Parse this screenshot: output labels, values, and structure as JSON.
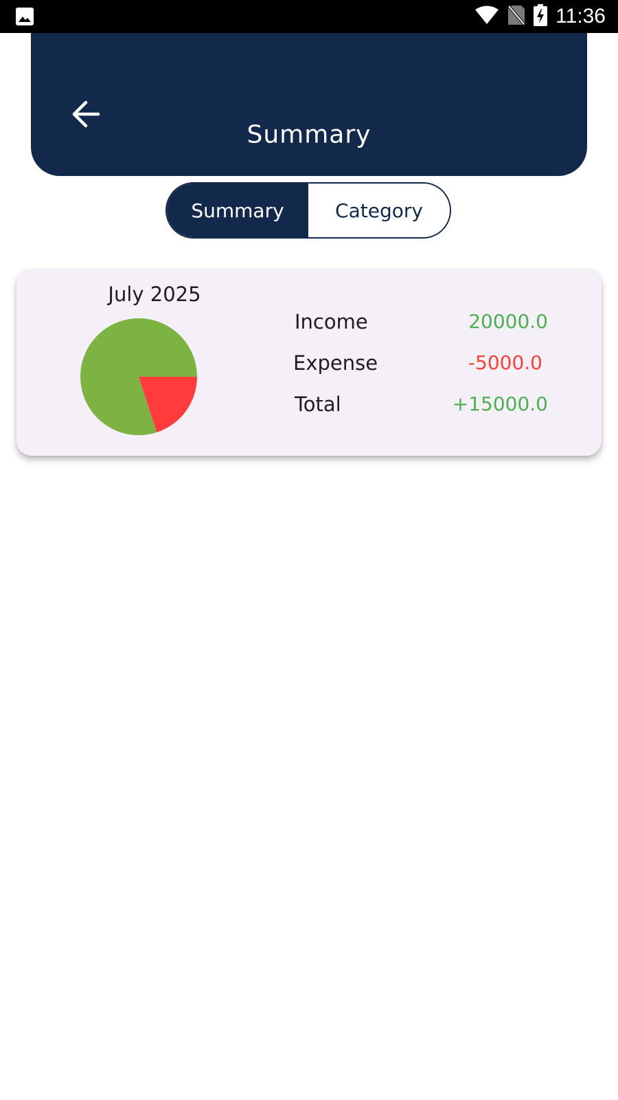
{
  "status_bar": {
    "time": "11:36",
    "icons": [
      "image-icon",
      "wifi-icon",
      "no-sim-icon",
      "battery-charging-icon"
    ]
  },
  "header": {
    "title": "Summary",
    "back_icon": "arrow-left-icon",
    "background_color": "#13294b"
  },
  "tabs": [
    {
      "label": "Summary",
      "active": true
    },
    {
      "label": "Category",
      "active": false
    }
  ],
  "summary_card": {
    "month": "July 2025",
    "rows": [
      {
        "label": "Income",
        "value": "20000.0",
        "color": "#4caf50"
      },
      {
        "label": "Expense",
        "value": "-5000.0",
        "color": "#f44336"
      },
      {
        "label": "Total",
        "value": "+15000.0",
        "color": "#4caf50"
      }
    ]
  },
  "chart_data": {
    "type": "pie",
    "slices": [
      {
        "value": 20000,
        "color": "#7cb342"
      },
      {
        "value": 5000,
        "color": "#ff3b3b"
      }
    ]
  }
}
